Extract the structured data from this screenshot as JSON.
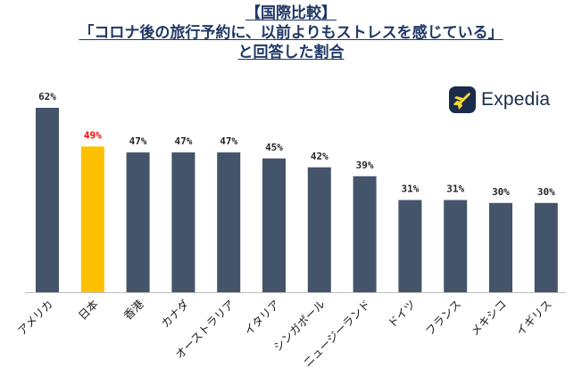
{
  "title": {
    "line1": "【国際比較】",
    "line2": "「コロナ後の旅行予約に、以前よりもストレスを感じている」",
    "line3": "と回答した割合"
  },
  "logo": {
    "text": "Expedia",
    "icon": "plane-logo-icon",
    "icon_bg": "#1b2b4b",
    "icon_plane": "#fddb32"
  },
  "colors": {
    "bar_default": "#44546a",
    "bar_highlight": "#ffc000",
    "label_default": "#262626",
    "label_highlight": "#ff0000",
    "axis": "#bfbfbf"
  },
  "chart_data": {
    "type": "bar",
    "categories": [
      "アメリカ",
      "日本",
      "香港",
      "カナダ",
      "オーストラリア",
      "イタリア",
      "シンガポール",
      "ニュージーランド",
      "ドイツ",
      "フランス",
      "メキシコ",
      "イギリス"
    ],
    "values": [
      62,
      49,
      47,
      47,
      47,
      45,
      42,
      39,
      31,
      31,
      30,
      30
    ],
    "data_labels": [
      "62%",
      "49%",
      "47%",
      "47%",
      "47%",
      "45%",
      "42%",
      "39%",
      "31%",
      "31%",
      "30%",
      "30%"
    ],
    "highlight": "日本",
    "ylim": [
      0,
      62
    ],
    "grid": false,
    "legend": "none",
    "xlabel": "",
    "ylabel": ""
  }
}
